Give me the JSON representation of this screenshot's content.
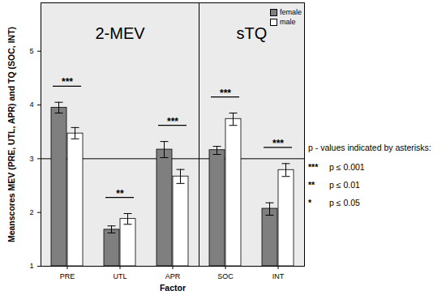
{
  "chart_data": {
    "type": "bar",
    "x_label": "Factor",
    "y_label": "Meanscores MEV (PRE, UTL, APR) and TQ (SOC, INT)",
    "categories": [
      "PRE",
      "UTL",
      "APR",
      "SOC",
      "INT"
    ],
    "series": [
      {
        "name": "female",
        "color": "#7f7f7f",
        "values": [
          3.95,
          1.68,
          3.17,
          3.16,
          2.07
        ],
        "error_low": [
          3.85,
          1.62,
          3.02,
          3.08,
          1.95
        ],
        "error_high": [
          4.05,
          1.75,
          3.32,
          3.23,
          2.18
        ]
      },
      {
        "name": "male",
        "color": "#ffffff",
        "values": [
          3.47,
          1.88,
          2.67,
          3.74,
          2.79
        ],
        "error_low": [
          3.37,
          1.78,
          2.54,
          3.62,
          2.67
        ],
        "error_high": [
          3.58,
          1.98,
          2.8,
          3.85,
          2.91
        ]
      }
    ],
    "ylim": [
      1,
      5.9
    ],
    "yticks": [
      1,
      2,
      3,
      4,
      5
    ],
    "legend": "top-right",
    "reference_line": 3,
    "sections": [
      {
        "label": "2-MEV",
        "categories": [
          "PRE",
          "UTL",
          "APR"
        ]
      },
      {
        "label": "sTQ",
        "categories": [
          "SOC",
          "INT"
        ]
      }
    ],
    "significance": [
      "***",
      "**",
      "***",
      "***",
      "***"
    ],
    "significance_key": {
      "title": "p - values indicated by asterisks:",
      "items": [
        {
          "symbol": "***",
          "text": "p ≤ 0.001"
        },
        {
          "symbol": "**",
          "text": "p ≤ 0.01"
        },
        {
          "symbol": "*",
          "text": "p ≤ 0.05"
        }
      ]
    }
  }
}
